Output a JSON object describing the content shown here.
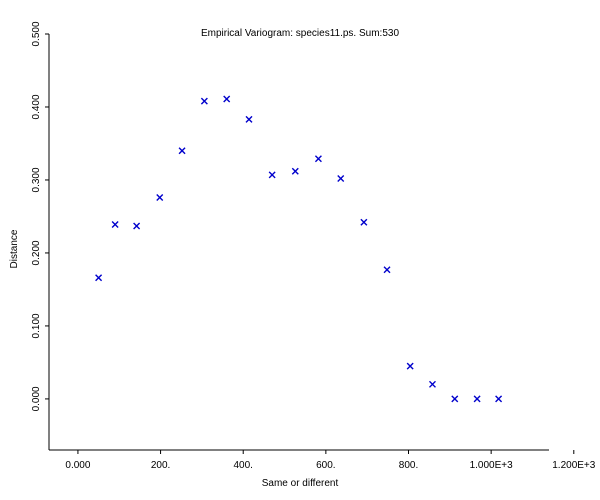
{
  "chart_data": {
    "type": "scatter",
    "title": "Empirical Variogram: species11.ps. Sum:530",
    "xlabel": "Same or different",
    "ylabel": "Distance",
    "xlim": [
      -70,
      1140
    ],
    "ylim": [
      -0.07,
      0.5
    ],
    "x_ticks": [
      {
        "value": 0,
        "label": "0.000"
      },
      {
        "value": 200,
        "label": "200."
      },
      {
        "value": 400,
        "label": "400."
      },
      {
        "value": 600,
        "label": "600."
      },
      {
        "value": 800,
        "label": "800."
      },
      {
        "value": 1000,
        "label": "1.000E+3"
      },
      {
        "value": 1200,
        "label": "1.200E+3"
      }
    ],
    "y_ticks": [
      {
        "value": 0.0,
        "label": "0.000"
      },
      {
        "value": 0.1,
        "label": "0.100"
      },
      {
        "value": 0.2,
        "label": "0.200"
      },
      {
        "value": 0.3,
        "label": "0.300"
      },
      {
        "value": 0.4,
        "label": "0.400"
      },
      {
        "value": 0.5,
        "label": "0.500"
      }
    ],
    "marker_color": "#0000cc",
    "marker": "x",
    "points": [
      {
        "x": 50,
        "y": 0.166
      },
      {
        "x": 90,
        "y": 0.239
      },
      {
        "x": 142,
        "y": 0.237
      },
      {
        "x": 198,
        "y": 0.276
      },
      {
        "x": 252,
        "y": 0.34
      },
      {
        "x": 306,
        "y": 0.408
      },
      {
        "x": 360,
        "y": 0.411
      },
      {
        "x": 414,
        "y": 0.383
      },
      {
        "x": 470,
        "y": 0.307
      },
      {
        "x": 526,
        "y": 0.312
      },
      {
        "x": 582,
        "y": 0.329
      },
      {
        "x": 636,
        "y": 0.302
      },
      {
        "x": 692,
        "y": 0.242
      },
      {
        "x": 748,
        "y": 0.177
      },
      {
        "x": 804,
        "y": 0.045
      },
      {
        "x": 858,
        "y": 0.02
      },
      {
        "x": 912,
        "y": 0.0
      },
      {
        "x": 966,
        "y": 0.0
      },
      {
        "x": 1018,
        "y": 0.0
      }
    ]
  }
}
